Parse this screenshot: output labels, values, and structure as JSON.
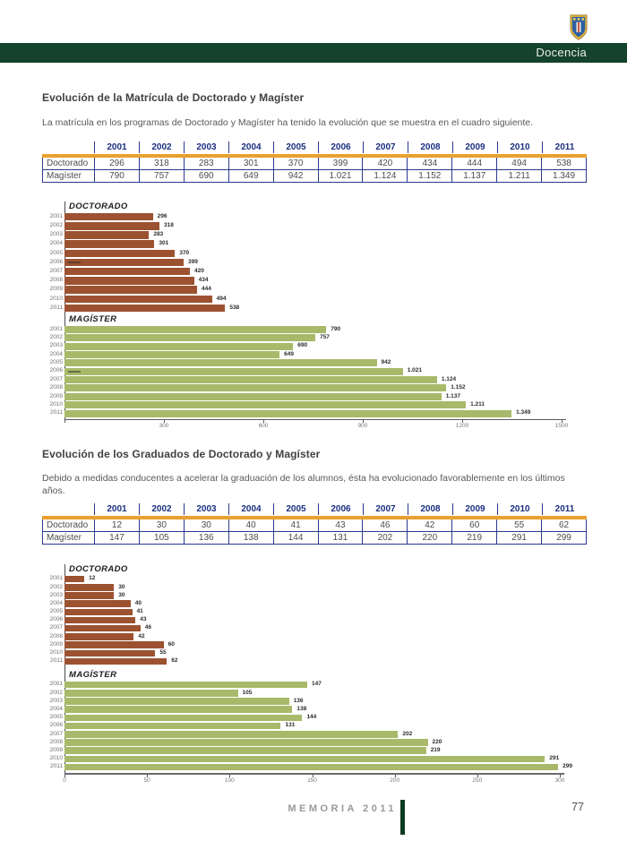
{
  "header": {
    "section_label": "Docencia",
    "logo": "universidad-crest"
  },
  "sections": [
    {
      "title": "Evolución de la Matrícula de Doctorado y Magíster",
      "intro": "La matrícula en los programas de Doctorado y Magíster ha tenido la evolución que se muestra en el cuadro siguiente.",
      "table": {
        "years": [
          "2001",
          "2002",
          "2003",
          "2004",
          "2005",
          "2006",
          "2007",
          "2008",
          "2009",
          "2010",
          "2011"
        ],
        "rows": [
          {
            "label": "Doctorado",
            "values": [
              "296",
              "318",
              "283",
              "301",
              "370",
              "399",
              "420",
              "434",
              "444",
              "494",
              "538"
            ]
          },
          {
            "label": "Magíster",
            "values": [
              "790",
              "757",
              "690",
              "649",
              "942",
              "1.021",
              "1.124",
              "1.152",
              "1.137",
              "1.211",
              "1.349"
            ]
          }
        ]
      }
    },
    {
      "title": "Evolución de los Graduados de Doctorado y Magíster",
      "intro": "Debido a medidas conducentes a acelerar la graduación de los alumnos, ésta ha evolucionado favorablemente en los últimos años.",
      "table": {
        "years": [
          "2001",
          "2002",
          "2003",
          "2004",
          "2005",
          "2006",
          "2007",
          "2008",
          "2009",
          "2010",
          "2011"
        ],
        "rows": [
          {
            "label": "Doctorado",
            "values": [
              "12",
              "30",
              "30",
              "40",
              "41",
              "43",
              "46",
              "42",
              "60",
              "55",
              "62"
            ]
          },
          {
            "label": "Magíster",
            "values": [
              "147",
              "105",
              "136",
              "138",
              "144",
              "131",
              "202",
              "220",
              "219",
              "291",
              "299"
            ]
          }
        ]
      }
    }
  ],
  "chart_data": [
    {
      "id": "matricula-doctorado",
      "type": "bar",
      "orientation": "horizontal",
      "title": "DOCTORADO",
      "categories": [
        "2001",
        "2002",
        "2003",
        "2004",
        "2005",
        "2006",
        "2007",
        "2008",
        "2009",
        "2010",
        "2011"
      ],
      "values": [
        296,
        318,
        283,
        301,
        370,
        399,
        420,
        434,
        444,
        494,
        538
      ],
      "value_labels": [
        "296",
        "318",
        "283",
        "301",
        "370",
        "399",
        "420",
        "434",
        "444",
        "494",
        "538"
      ],
      "bar_color": "#9c5231",
      "xlim": [
        0,
        1500
      ],
      "axis_ticks": null,
      "marker_dash_category": "2006"
    },
    {
      "id": "matricula-magister",
      "type": "bar",
      "orientation": "horizontal",
      "title": "MAGÍSTER",
      "categories": [
        "2001",
        "2002",
        "2003",
        "2004",
        "2005",
        "2006",
        "2007",
        "2008",
        "2009",
        "2010",
        "2011"
      ],
      "values": [
        790,
        757,
        690,
        649,
        942,
        1021,
        1124,
        1152,
        1137,
        1211,
        1349
      ],
      "value_labels": [
        "790",
        "757",
        "690",
        "649",
        "942",
        "1.021",
        "1.124",
        "1.152",
        "1.137",
        "1.211",
        "1.349"
      ],
      "bar_color": "#a8b96a",
      "xlim": [
        0,
        1500
      ],
      "axis_ticks": [
        300,
        600,
        900,
        1200,
        1500
      ],
      "marker_dash_category": "2006"
    },
    {
      "id": "graduados-doctorado",
      "type": "bar",
      "orientation": "horizontal",
      "title": "DOCTORADO",
      "categories": [
        "2001",
        "2002",
        "2003",
        "2004",
        "2005",
        "2006",
        "2007",
        "2008",
        "2009",
        "2010",
        "2011"
      ],
      "values": [
        12,
        30,
        30,
        40,
        41,
        43,
        46,
        42,
        60,
        55,
        62
      ],
      "value_labels": [
        "12",
        "30",
        "30",
        "40",
        "41",
        "43",
        "46",
        "42",
        "60",
        "55",
        "62"
      ],
      "bar_color": "#9c5231",
      "xlim": [
        0,
        300
      ],
      "axis_ticks": null,
      "marker_dash_category": null
    },
    {
      "id": "graduados-magister",
      "type": "bar",
      "orientation": "horizontal",
      "title": "MAGÍSTER",
      "categories": [
        "2001",
        "2002",
        "2003",
        "2004",
        "2005",
        "2006",
        "2007",
        "2008",
        "2009",
        "2010",
        "2011"
      ],
      "values": [
        147,
        105,
        136,
        138,
        144,
        131,
        202,
        220,
        219,
        291,
        299
      ],
      "value_labels": [
        "147",
        "105",
        "136",
        "138",
        "144",
        "131",
        "202",
        "220",
        "219",
        "291",
        "299"
      ],
      "bar_color": "#a8b96a",
      "xlim": [
        0,
        300
      ],
      "axis_ticks": [
        0,
        50,
        100,
        150,
        200,
        250,
        300
      ],
      "marker_dash_category": null
    }
  ],
  "footer": {
    "memoria_label": "MEMORIA 2011",
    "page_number": "77"
  },
  "colors": {
    "header_green": "#15422a",
    "table_blue": "#2b3990",
    "orange_rule": "#e9a02e",
    "brown_bar": "#9c5231",
    "green_bar": "#a8b96a",
    "footer_accent": "#0d3a21"
  }
}
